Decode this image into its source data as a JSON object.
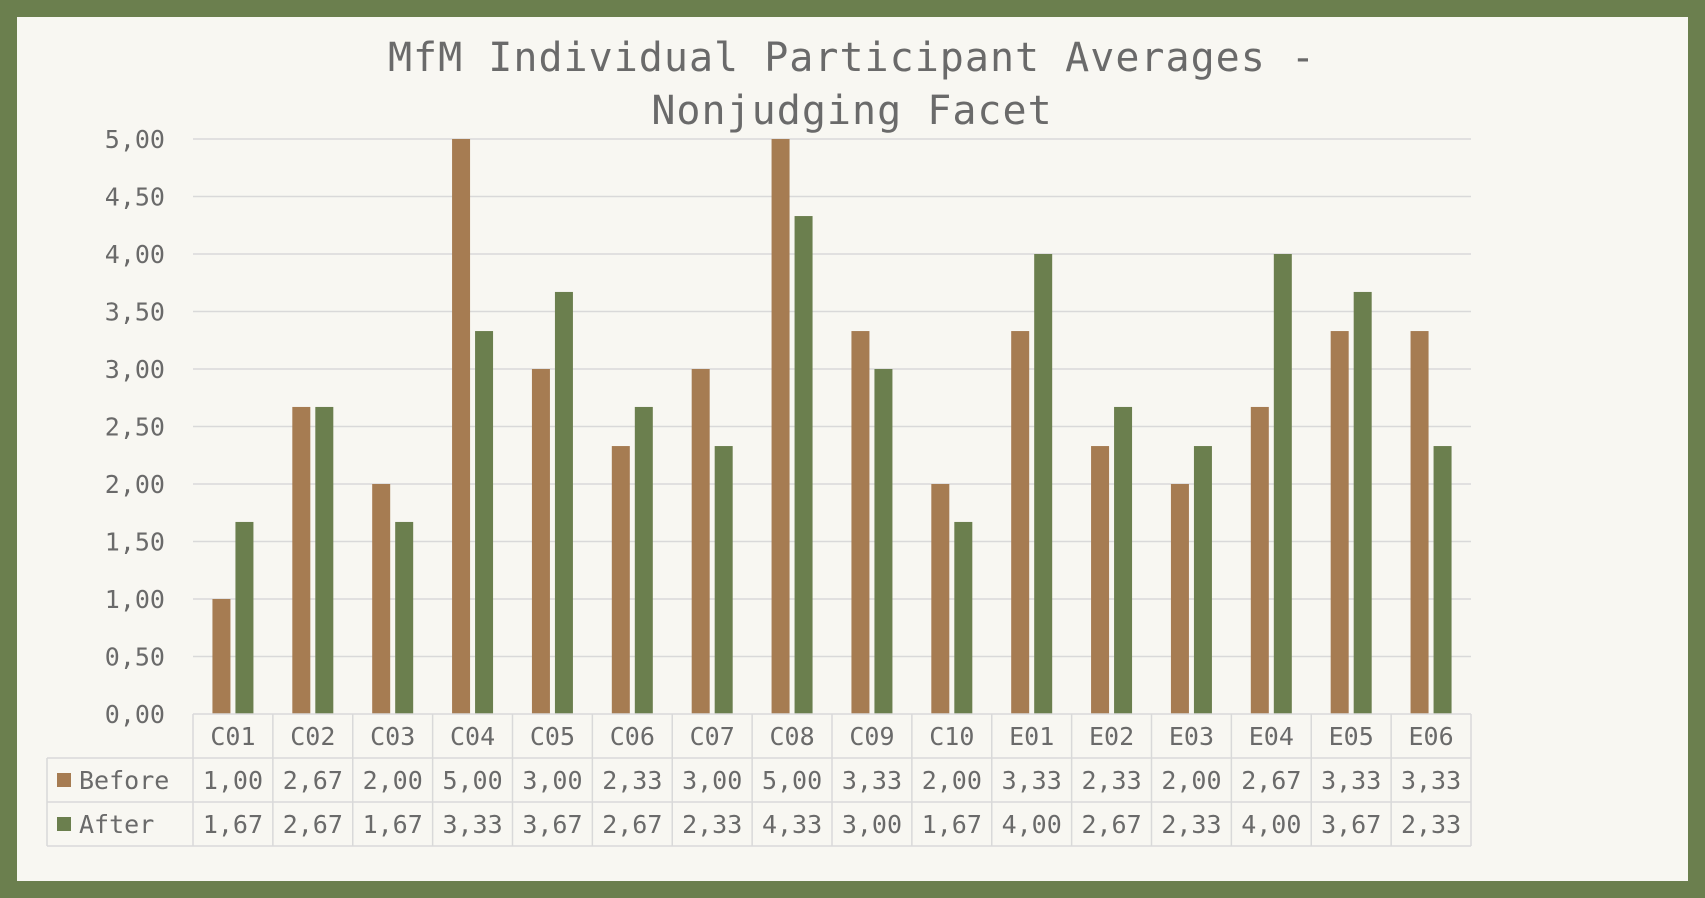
{
  "chart_data": {
    "type": "bar",
    "title_lines": [
      "MfM Individual Participant Averages -",
      "Nonjudging Facet"
    ],
    "categories": [
      "C01",
      "C02",
      "C03",
      "C04",
      "C05",
      "C06",
      "C07",
      "C08",
      "C09",
      "C10",
      "E01",
      "E02",
      "E03",
      "E04",
      "E05",
      "E06"
    ],
    "series": [
      {
        "name": "Before",
        "color": "#a67c52",
        "values": [
          1.0,
          2.67,
          2.0,
          5.0,
          3.0,
          2.33,
          3.0,
          5.0,
          3.33,
          2.0,
          3.33,
          2.33,
          2.0,
          2.67,
          3.33,
          3.33
        ],
        "labels": [
          "1,00",
          "2,67",
          "2,00",
          "5,00",
          "3,00",
          "2,33",
          "3,00",
          "5,00",
          "3,33",
          "2,00",
          "3,33",
          "2,33",
          "2,00",
          "2,67",
          "3,33",
          "3,33"
        ]
      },
      {
        "name": "After",
        "color": "#6b7f4e",
        "values": [
          1.67,
          2.67,
          1.67,
          3.33,
          3.67,
          2.67,
          2.33,
          4.33,
          3.0,
          1.67,
          4.0,
          2.67,
          2.33,
          4.0,
          3.67,
          2.33
        ],
        "labels": [
          "1,67",
          "2,67",
          "1,67",
          "3,33",
          "3,67",
          "2,67",
          "2,33",
          "4,33",
          "3,00",
          "1,67",
          "4,00",
          "2,67",
          "2,33",
          "4,00",
          "3,67",
          "2,33"
        ]
      }
    ],
    "ylim": [
      0,
      5
    ],
    "yticks": [
      "0,00",
      "0,50",
      "1,00",
      "1,50",
      "2,00",
      "2,50",
      "3,00",
      "3,50",
      "4,00",
      "4,50",
      "5,00"
    ],
    "grid": true,
    "legend": "data-table",
    "xlabel": "",
    "ylabel": ""
  },
  "colors": {
    "frame": "#6b7f4e",
    "background": "#f8f7f2",
    "gridline": "#d9d9d9",
    "text": "#6a6a6a"
  }
}
